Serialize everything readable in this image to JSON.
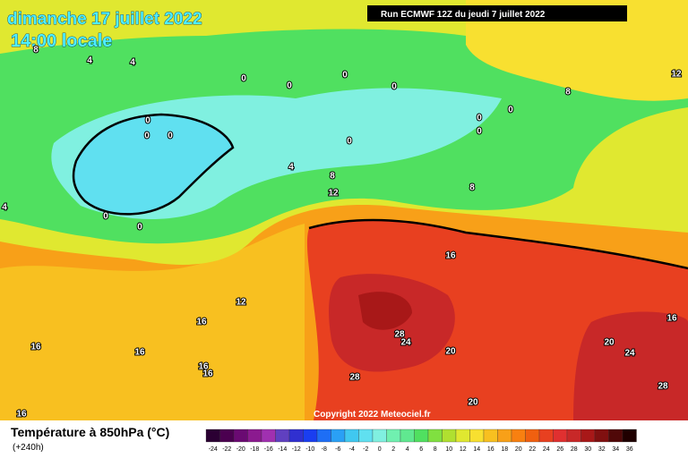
{
  "header": {
    "date": "dimanche 17 juillet 2022",
    "time": "14:00 locale",
    "run": "Run ECMWF 12Z du jeudi 7 juillet 2022"
  },
  "footer": {
    "copyright": "Copyright 2022 Meteociel.fr"
  },
  "legend": {
    "title": "Température à 850hPa (°C)",
    "lead_time": "(+240h)",
    "scale": [
      {
        "value": -24,
        "color": "#2b0033"
      },
      {
        "value": -22,
        "color": "#4b0050"
      },
      {
        "value": -20,
        "color": "#6a0a72"
      },
      {
        "value": -18,
        "color": "#8b1a8f"
      },
      {
        "value": -16,
        "color": "#a030b0"
      },
      {
        "value": -14,
        "color": "#6040c0"
      },
      {
        "value": -12,
        "color": "#3030d0"
      },
      {
        "value": -10,
        "color": "#1a3ef0"
      },
      {
        "value": -8,
        "color": "#1e6ef5"
      },
      {
        "value": -6,
        "color": "#2aa0f5"
      },
      {
        "value": -4,
        "color": "#40c8f0"
      },
      {
        "value": -2,
        "color": "#60e0f0"
      },
      {
        "value": 0,
        "color": "#80f0e0"
      },
      {
        "value": 2,
        "color": "#70f0b0"
      },
      {
        "value": 4,
        "color": "#60e890"
      },
      {
        "value": 6,
        "color": "#50e060"
      },
      {
        "value": 8,
        "color": "#80e040"
      },
      {
        "value": 10,
        "color": "#b0e030"
      },
      {
        "value": 12,
        "color": "#e0e830"
      },
      {
        "value": 14,
        "color": "#f8e030"
      },
      {
        "value": 16,
        "color": "#f8c020"
      },
      {
        "value": 18,
        "color": "#f8a018"
      },
      {
        "value": 20,
        "color": "#f88010"
      },
      {
        "value": 22,
        "color": "#f06010"
      },
      {
        "value": 24,
        "color": "#e84020"
      },
      {
        "value": 26,
        "color": "#e03030"
      },
      {
        "value": 28,
        "color": "#c82828"
      },
      {
        "value": 30,
        "color": "#a81818"
      },
      {
        "value": 32,
        "color": "#801010"
      },
      {
        "value": 34,
        "color": "#500808"
      },
      {
        "value": 36,
        "color": "#200000"
      }
    ]
  },
  "map": {
    "contour_labels": [
      0,
      0,
      0,
      0,
      0,
      0,
      0,
      0,
      0,
      0,
      0,
      0,
      0,
      4,
      4,
      4,
      4,
      8,
      8,
      8,
      8,
      12,
      12,
      12,
      16,
      16,
      16,
      16,
      16,
      16,
      16,
      16,
      20,
      20,
      20,
      24,
      24,
      28,
      28,
      28
    ]
  }
}
